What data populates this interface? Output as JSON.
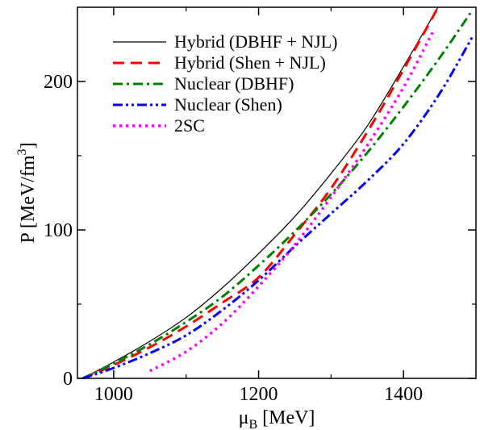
{
  "chart_data": {
    "type": "line",
    "title": "",
    "xlabel": {
      "main": "μ",
      "sub": "B",
      "unit": " [MeV]"
    },
    "ylabel": {
      "main": "P [MeV/fm",
      "sup": "3",
      "end": "]"
    },
    "xlim": [
      950,
      1500
    ],
    "ylim": [
      0,
      250
    ],
    "xticks": [
      1000,
      1200,
      1400
    ],
    "yticks": [
      0,
      100,
      200
    ],
    "grid": false,
    "legend_position": "top-left",
    "series": [
      {
        "name": "Hybrid (DBHF + NJL)",
        "color": "#000000",
        "dash": "solid",
        "x": [
          957,
          1000,
          1050,
          1100,
          1150,
          1200,
          1250,
          1300,
          1350,
          1400,
          1450
        ],
        "y": [
          0,
          11,
          25,
          41,
          61,
          84,
          109,
          138,
          170,
          210,
          252
        ]
      },
      {
        "name": "Hybrid (Shen + NJL)",
        "color": "#ff0000",
        "dash": "dashed",
        "x": [
          957,
          1000,
          1050,
          1100,
          1150,
          1200,
          1250,
          1300,
          1355,
          1400,
          1450
        ],
        "y": [
          0,
          9,
          21,
          35,
          51,
          68,
          97,
          128,
          170,
          208,
          252
        ]
      },
      {
        "name": "Nuclear (DBHF)",
        "color": "#008000",
        "dash": "dashdot",
        "x": [
          957,
          1000,
          1050,
          1100,
          1150,
          1200,
          1250,
          1300,
          1350,
          1400,
          1450,
          1495
        ],
        "y": [
          0,
          10,
          23,
          38,
          55,
          76,
          99,
          124,
          152,
          183,
          216,
          248
        ]
      },
      {
        "name": "Nuclear (Shen)",
        "color": "#0000ff",
        "dash": "dashdotdot",
        "x": [
          957,
          1000,
          1050,
          1100,
          1150,
          1200,
          1250,
          1300,
          1350,
          1400,
          1450,
          1495
        ],
        "y": [
          0,
          7,
          17,
          29,
          46,
          66,
          89,
          111,
          133,
          158,
          192,
          230
        ]
      },
      {
        "name": "2SC",
        "color": "#ff00ff",
        "dash": "dotted",
        "x": [
          1050,
          1100,
          1150,
          1200,
          1250,
          1300,
          1350,
          1400,
          1440
        ],
        "y": [
          5,
          18,
          37,
          62,
          90,
          122,
          157,
          196,
          233
        ]
      }
    ]
  }
}
